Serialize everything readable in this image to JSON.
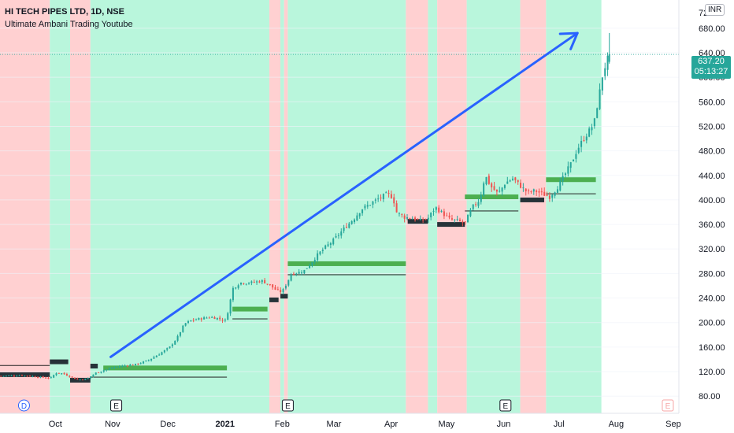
{
  "header": {
    "symbol_line": "HI TECH PIPES LTD, 1D, NSE",
    "indicator_line": "Ultimate Ambani Trading Youtube"
  },
  "axis": {
    "currency": "INR",
    "top_partial_label": "72",
    "last_price": "637.20",
    "countdown": "05:13:27"
  },
  "chart_data": {
    "type": "candlestick",
    "y_ticks": [
      80,
      120,
      160,
      200,
      240,
      280,
      320,
      360,
      400,
      440,
      480,
      520,
      560,
      600,
      640,
      680
    ],
    "y_tick_labels": [
      "80.00",
      "120.00",
      "160.00",
      "200.00",
      "240.00",
      "280.00",
      "320.00",
      "360.00",
      "400.00",
      "440.00",
      "480.00",
      "520.00",
      "560.00",
      "600.00",
      "640.00",
      "680.00"
    ],
    "ylim": [
      52,
      726
    ],
    "x_ticks": [
      {
        "label": "Oct",
        "day": 30,
        "bold": false
      },
      {
        "label": "Nov",
        "day": 61,
        "bold": false
      },
      {
        "label": "Dec",
        "day": 91,
        "bold": false
      },
      {
        "label": "2021",
        "day": 122,
        "bold": true
      },
      {
        "label": "Feb",
        "day": 153,
        "bold": false
      },
      {
        "label": "Mar",
        "day": 181,
        "bold": false
      },
      {
        "label": "Apr",
        "day": 212,
        "bold": false
      },
      {
        "label": "May",
        "day": 242,
        "bold": false
      },
      {
        "label": "Jun",
        "day": 273,
        "bold": false
      },
      {
        "label": "Jul",
        "day": 303,
        "bold": false
      },
      {
        "label": "Aug",
        "day": 334,
        "bold": false
      },
      {
        "label": "Sep",
        "day": 365,
        "bold": false
      }
    ],
    "xlim": [
      0,
      368
    ],
    "price_path": [
      [
        0,
        113
      ],
      [
        12,
        114
      ],
      [
        25,
        110
      ],
      [
        28,
        110
      ],
      [
        30,
        118
      ],
      [
        34,
        117
      ],
      [
        38,
        112
      ],
      [
        42,
        107
      ],
      [
        47,
        108
      ],
      [
        52,
        118
      ],
      [
        56,
        122
      ],
      [
        62,
        127
      ],
      [
        68,
        130
      ],
      [
        74,
        132
      ],
      [
        80,
        138
      ],
      [
        86,
        148
      ],
      [
        92,
        160
      ],
      [
        96,
        175
      ],
      [
        100,
        198
      ],
      [
        104,
        204
      ],
      [
        110,
        207
      ],
      [
        114,
        209
      ],
      [
        118,
        207
      ],
      [
        122,
        203
      ],
      [
        124,
        222
      ],
      [
        126,
        255
      ],
      [
        130,
        265
      ],
      [
        136,
        265
      ],
      [
        142,
        268
      ],
      [
        146,
        262
      ],
      [
        150,
        252
      ],
      [
        153,
        250
      ],
      [
        155,
        262
      ],
      [
        158,
        280
      ],
      [
        162,
        282
      ],
      [
        165,
        285
      ],
      [
        168,
        295
      ],
      [
        172,
        310
      ],
      [
        176,
        322
      ],
      [
        180,
        332
      ],
      [
        184,
        345
      ],
      [
        188,
        358
      ],
      [
        192,
        370
      ],
      [
        196,
        385
      ],
      [
        200,
        392
      ],
      [
        204,
        400
      ],
      [
        210,
        410
      ],
      [
        213,
        404
      ],
      [
        215,
        380
      ],
      [
        219,
        372
      ],
      [
        224,
        370
      ],
      [
        228,
        366
      ],
      [
        232,
        370
      ],
      [
        236,
        388
      ],
      [
        240,
        378
      ],
      [
        244,
        368
      ],
      [
        248,
        366
      ],
      [
        252,
        362
      ],
      [
        256,
        388
      ],
      [
        260,
        400
      ],
      [
        263,
        440
      ],
      [
        266,
        422
      ],
      [
        270,
        410
      ],
      [
        274,
        428
      ],
      [
        278,
        435
      ],
      [
        282,
        423
      ],
      [
        286,
        412
      ],
      [
        290,
        415
      ],
      [
        294,
        410
      ],
      [
        298,
        405
      ],
      [
        302,
        420
      ],
      [
        306,
        440
      ],
      [
        310,
        462
      ],
      [
        313,
        483
      ],
      [
        316,
        498
      ],
      [
        319,
        511
      ],
      [
        322,
        525
      ],
      [
        325,
        575
      ],
      [
        327,
        610
      ],
      [
        329,
        625
      ],
      [
        330,
        637
      ]
    ],
    "last_price": 637.2,
    "regimes": [
      {
        "from": 0,
        "to": 27,
        "trend": "bear"
      },
      {
        "from": 27,
        "to": 38,
        "trend": "bull"
      },
      {
        "from": 38,
        "to": 49,
        "trend": "bear"
      },
      {
        "from": 49,
        "to": 146,
        "trend": "bull"
      },
      {
        "from": 146,
        "to": 152,
        "trend": "bear"
      },
      {
        "from": 152,
        "to": 154,
        "trend": "bull"
      },
      {
        "from": 154,
        "to": 156,
        "trend": "bear"
      },
      {
        "from": 156,
        "to": 220,
        "trend": "bull"
      },
      {
        "from": 220,
        "to": 232,
        "trend": "bear"
      },
      {
        "from": 232,
        "to": 237,
        "trend": "bull"
      },
      {
        "from": 237,
        "to": 253,
        "trend": "bear"
      },
      {
        "from": 253,
        "to": 282,
        "trend": "bull"
      },
      {
        "from": 282,
        "to": 296,
        "trend": "bear"
      },
      {
        "from": 296,
        "to": 326,
        "trend": "bull"
      }
    ],
    "levels": [
      {
        "from": 0,
        "to": 27,
        "y": 115,
        "color": "dark"
      },
      {
        "from": 0,
        "to": 27,
        "y": 130,
        "color": "thin"
      },
      {
        "from": 27,
        "to": 37,
        "y": 136,
        "color": "dark"
      },
      {
        "from": 38,
        "to": 49,
        "y": 106,
        "color": "dark"
      },
      {
        "from": 49,
        "to": 53,
        "y": 129,
        "color": "dark"
      },
      {
        "from": 56,
        "to": 123,
        "y": 126,
        "color": "green"
      },
      {
        "from": 49,
        "to": 123,
        "y": 111,
        "color": "thin"
      },
      {
        "from": 126,
        "to": 145,
        "y": 222,
        "color": "green"
      },
      {
        "from": 126,
        "to": 145,
        "y": 206,
        "color": "thin"
      },
      {
        "from": 146,
        "to": 151,
        "y": 237,
        "color": "dark"
      },
      {
        "from": 152,
        "to": 156,
        "y": 243,
        "color": "dark"
      },
      {
        "from": 156,
        "to": 220,
        "y": 296,
        "color": "green"
      },
      {
        "from": 156,
        "to": 220,
        "y": 278,
        "color": "thin"
      },
      {
        "from": 221,
        "to": 232,
        "y": 365,
        "color": "dark"
      },
      {
        "from": 237,
        "to": 252,
        "y": 360,
        "color": "dark"
      },
      {
        "from": 252,
        "to": 281,
        "y": 405,
        "color": "green"
      },
      {
        "from": 252,
        "to": 281,
        "y": 382,
        "color": "thin"
      },
      {
        "from": 282,
        "to": 295,
        "y": 400,
        "color": "dark"
      },
      {
        "from": 296,
        "to": 323,
        "y": 433,
        "color": "green"
      },
      {
        "from": 296,
        "to": 323,
        "y": 410,
        "color": "thin"
      }
    ],
    "arrow": {
      "from": [
        60,
        144
      ],
      "to": [
        313,
        672
      ]
    },
    "event_markers": [
      {
        "label": "D",
        "day": 13,
        "type": "dividend"
      },
      {
        "label": "E",
        "day": 63,
        "type": "earnings"
      },
      {
        "label": "E",
        "day": 156,
        "type": "earnings"
      },
      {
        "label": "E",
        "day": 274,
        "type": "earnings"
      },
      {
        "label": "E",
        "day": 362,
        "type": "future"
      }
    ],
    "colors": {
      "up": "#26a69a",
      "down": "#ef5350",
      "bull_bg": "#b9f6dc",
      "bear_bg": "#ffd0d1",
      "green_level": "#4caf50",
      "dark_level": "#263238",
      "arrow": "#2962ff"
    }
  }
}
